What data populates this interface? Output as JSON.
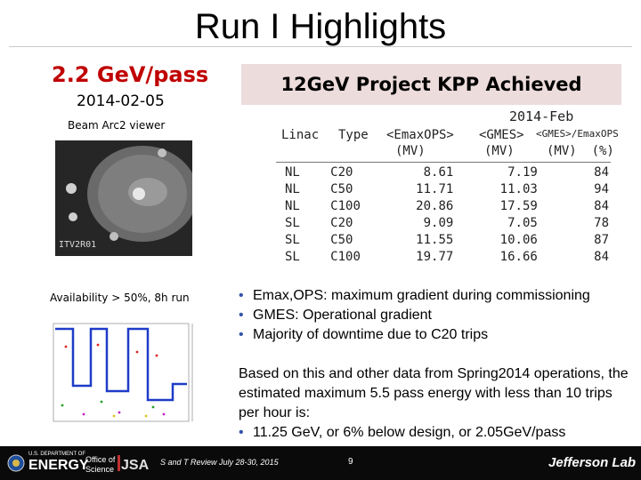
{
  "slide": {
    "title": "Run I Highlights",
    "left": {
      "headline": "2.2 GeV/pass",
      "date": "2014-02-05",
      "viewer_caption": "Beam Arc2 viewer",
      "viewer_label": "ITV2R01",
      "availability": "Availability > 50%, 8h run"
    },
    "kpp_banner": "12GeV Project KPP Achieved",
    "table": {
      "period": "2014-Feb",
      "headers": [
        "Linac",
        "Type",
        "<EmaxOPS>",
        "<GMES>",
        "<GMES>/EmaxOPS"
      ],
      "units": [
        "",
        "",
        "(MV)",
        "(MV)",
        "(MV)  (%)"
      ],
      "rows": [
        [
          "NL",
          "C20",
          "8.61",
          "7.19",
          "84"
        ],
        [
          "NL",
          "C50",
          "11.71",
          "11.03",
          "94"
        ],
        [
          "NL",
          "C100",
          "20.86",
          "17.59",
          "84"
        ],
        [
          "SL",
          "C20",
          "9.09",
          "7.05",
          "78"
        ],
        [
          "SL",
          "C50",
          "11.55",
          "10.06",
          "87"
        ],
        [
          "SL",
          "C100",
          "19.77",
          "16.66",
          "84"
        ]
      ]
    },
    "bullets": [
      "Emax,OPS:  maximum gradient during commissioning",
      "GMES: Operational gradient",
      "Majority of downtime due to C20 trips"
    ],
    "paragraph": "Based on this and other data from Spring2014 operations, the estimated maximum 5.5 pass energy with less than 10 trips per hour is:",
    "paragraph_bullet": "11.25 GeV, or 6% below design, or 2.05GeV/pass"
  },
  "footer": {
    "doe_small": "U.S. DEPARTMENT OF",
    "energy": "ENERGY",
    "office": "Office of",
    "science": "Science",
    "review": "S and T Review July 28-30, 2015",
    "page": "9",
    "lab": "Jefferson Lab"
  },
  "colors": {
    "headline_red": "#c00000",
    "banner_bg": "#eddcdc",
    "footer_bg": "#0a0a0a"
  }
}
